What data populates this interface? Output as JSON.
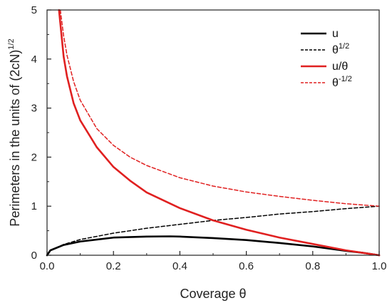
{
  "chart_data": {
    "type": "line",
    "xlabel": "Coverage θ",
    "ylabel": "Perimeters in the units of (2cN)",
    "ylabel_sup": "1/2",
    "xlim": [
      0.0,
      1.0
    ],
    "ylim": [
      0,
      5
    ],
    "xticks": [
      "0.0",
      "0.2",
      "0.4",
      "0.6",
      "0.8",
      "1.0"
    ],
    "yticks": [
      "0",
      "1",
      "2",
      "3",
      "4",
      "5"
    ],
    "grid": false,
    "legend_position": "top-right",
    "series": [
      {
        "name": "u",
        "name_sup": "",
        "color": "#000000",
        "dash": "solid",
        "x": [
          0.0,
          0.01,
          0.05,
          0.1,
          0.2,
          0.3,
          0.37,
          0.4,
          0.5,
          0.6,
          0.7,
          0.8,
          0.9,
          0.95,
          1.0
        ],
        "y": [
          0.0,
          0.1,
          0.21,
          0.28,
          0.36,
          0.38,
          0.385,
          0.38,
          0.35,
          0.31,
          0.25,
          0.18,
          0.09,
          0.05,
          0.0
        ]
      },
      {
        "name": "θ",
        "name_sup": "1/2",
        "color": "#000000",
        "dash": "dashed",
        "x": [
          0.0,
          0.01,
          0.05,
          0.1,
          0.2,
          0.3,
          0.4,
          0.5,
          0.6,
          0.7,
          0.8,
          0.9,
          1.0
        ],
        "y": [
          0.0,
          0.1,
          0.22,
          0.32,
          0.45,
          0.55,
          0.63,
          0.71,
          0.77,
          0.84,
          0.89,
          0.95,
          1.0
        ]
      },
      {
        "name": "u/θ",
        "name_sup": "",
        "color": "#e02020",
        "dash": "solid",
        "x": [
          0.036,
          0.05,
          0.06,
          0.08,
          0.1,
          0.15,
          0.2,
          0.25,
          0.3,
          0.4,
          0.5,
          0.6,
          0.7,
          0.8,
          0.9,
          0.95,
          1.0
        ],
        "y": [
          5.0,
          4.05,
          3.65,
          3.1,
          2.75,
          2.2,
          1.8,
          1.52,
          1.28,
          0.96,
          0.71,
          0.52,
          0.36,
          0.23,
          0.1,
          0.05,
          0.0
        ]
      },
      {
        "name": "θ",
        "name_sup": "-1/2",
        "color": "#e02020",
        "dash": "dashed",
        "x": [
          0.04,
          0.05,
          0.06,
          0.08,
          0.1,
          0.15,
          0.2,
          0.25,
          0.3,
          0.4,
          0.5,
          0.6,
          0.7,
          0.8,
          0.9,
          1.0
        ],
        "y": [
          5.0,
          4.47,
          4.08,
          3.54,
          3.16,
          2.58,
          2.24,
          2.0,
          1.83,
          1.58,
          1.41,
          1.29,
          1.2,
          1.12,
          1.05,
          1.0
        ]
      }
    ]
  }
}
